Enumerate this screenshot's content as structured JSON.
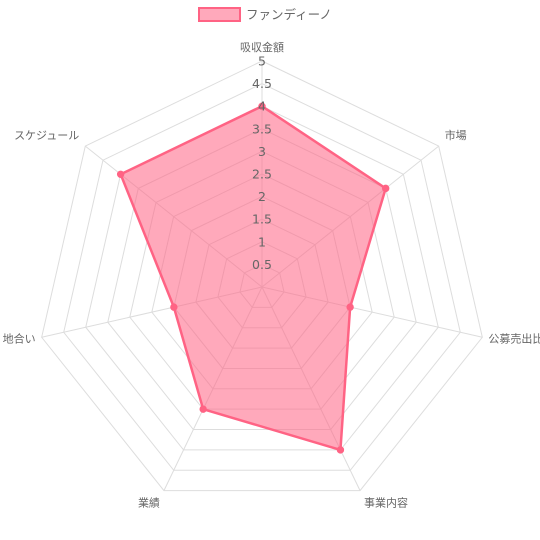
{
  "chart_data": {
    "type": "radar",
    "categories": [
      "吸収金額",
      "市場",
      "公募売出比",
      "事業内容",
      "業績",
      "地合い",
      "スケジュール"
    ],
    "series": [
      {
        "name": "ファンディーノ",
        "values": [
          4,
          3.5,
          2,
          4,
          3,
          2,
          4
        ],
        "color": "#ff6384",
        "fill": "rgba(255,99,132,0.55)"
      }
    ],
    "scale": {
      "min": 0,
      "max": 5,
      "step": 0.5
    },
    "tick_labels": [
      "0.5",
      "1",
      "1.5",
      "2",
      "2.5",
      "3",
      "3.5",
      "4",
      "4.5",
      "5"
    ],
    "grid": true,
    "legend_position": "top"
  }
}
